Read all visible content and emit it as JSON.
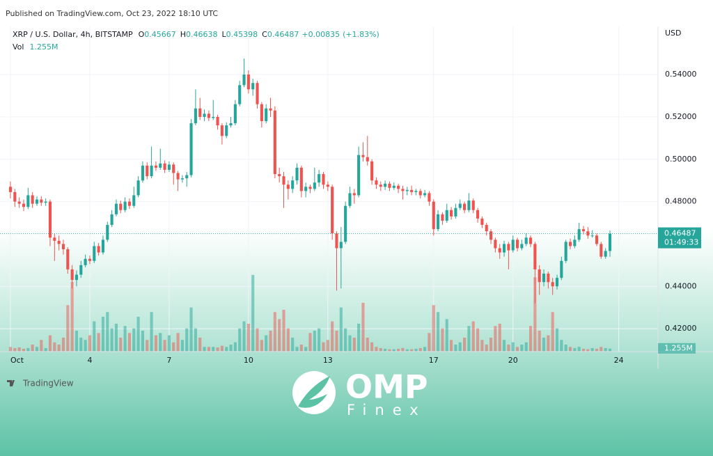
{
  "header": {
    "published": "Published on TradingView.com, Oct 23, 2022 18:10 UTC",
    "brand": "TradingView"
  },
  "watermark": {
    "logo": "OMP",
    "sub": "Finex"
  },
  "chart_data": {
    "type": "candlestick",
    "title": "XRP / U.S. Dollar, 4h, BITSTAMP",
    "ohlc_labels": [
      "O",
      "H",
      "L",
      "C"
    ],
    "change": {
      "value": 0.00835,
      "label": "+0.00835"
    },
    "change_pct": {
      "value": 1.83,
      "label": "(+1.83%)"
    },
    "currency": "USD",
    "countdown": "01:49:33",
    "up_color": "#26a69a",
    "down_color": "#ef5350",
    "candles": [
      [
        0.487,
        0.4895,
        0.4815,
        0.4845
      ],
      [
        0.4845,
        0.486,
        0.4775,
        0.48
      ],
      [
        0.48,
        0.482,
        0.477,
        0.479
      ],
      [
        0.479,
        0.481,
        0.4755,
        0.4775
      ],
      [
        0.4775,
        0.4865,
        0.4765,
        0.483
      ],
      [
        0.483,
        0.4845,
        0.477,
        0.479
      ],
      [
        0.479,
        0.4825,
        0.478,
        0.481
      ],
      [
        0.481,
        0.4825,
        0.478,
        0.4795
      ],
      [
        0.4795,
        0.4815,
        0.478,
        0.48
      ],
      [
        0.48,
        0.481,
        0.459,
        0.463
      ],
      [
        0.463,
        0.465,
        0.452,
        0.4615
      ],
      [
        0.4615,
        0.464,
        0.457,
        0.46
      ],
      [
        0.46,
        0.462,
        0.455,
        0.4575
      ],
      [
        0.4575,
        0.4585,
        0.446,
        0.448
      ],
      [
        0.448,
        0.45,
        0.439,
        0.443
      ],
      [
        0.443,
        0.4475,
        0.44,
        0.4455
      ],
      [
        0.4455,
        0.452,
        0.444,
        0.45
      ],
      [
        0.45,
        0.455,
        0.449,
        0.453
      ],
      [
        0.453,
        0.4545,
        0.4505,
        0.452
      ],
      [
        0.452,
        0.461,
        0.451,
        0.459
      ],
      [
        0.459,
        0.4605,
        0.4545,
        0.456
      ],
      [
        0.456,
        0.464,
        0.455,
        0.462
      ],
      [
        0.462,
        0.4705,
        0.461,
        0.469
      ],
      [
        0.469,
        0.476,
        0.468,
        0.474
      ],
      [
        0.474,
        0.481,
        0.473,
        0.479
      ],
      [
        0.479,
        0.4805,
        0.4745,
        0.476
      ],
      [
        0.476,
        0.482,
        0.475,
        0.48
      ],
      [
        0.48,
        0.4815,
        0.4765,
        0.478
      ],
      [
        0.478,
        0.487,
        0.477,
        0.483
      ],
      [
        0.483,
        0.492,
        0.482,
        0.49
      ],
      [
        0.49,
        0.499,
        0.489,
        0.497
      ],
      [
        0.497,
        0.4985,
        0.4905,
        0.492
      ],
      [
        0.492,
        0.506,
        0.491,
        0.497
      ],
      [
        0.497,
        0.499,
        0.4945,
        0.496
      ],
      [
        0.496,
        0.505,
        0.495,
        0.498
      ],
      [
        0.498,
        0.4995,
        0.4935,
        0.495
      ],
      [
        0.495,
        0.499,
        0.494,
        0.4975
      ],
      [
        0.4975,
        0.4985,
        0.488,
        0.4935
      ],
      [
        0.4935,
        0.4945,
        0.485,
        0.4905
      ],
      [
        0.4905,
        0.4925,
        0.489,
        0.491
      ],
      [
        0.491,
        0.494,
        0.487,
        0.4925
      ],
      [
        0.4925,
        0.519,
        0.4915,
        0.517
      ],
      [
        0.517,
        0.533,
        0.516,
        0.524
      ],
      [
        0.524,
        0.529,
        0.5185,
        0.52
      ],
      [
        0.52,
        0.5235,
        0.518,
        0.5215
      ],
      [
        0.5215,
        0.523,
        0.518,
        0.5195
      ],
      [
        0.5195,
        0.528,
        0.5185,
        0.52
      ],
      [
        0.52,
        0.521,
        0.514,
        0.516
      ],
      [
        0.516,
        0.517,
        0.507,
        0.511
      ],
      [
        0.511,
        0.5175,
        0.51,
        0.516
      ],
      [
        0.516,
        0.52,
        0.515,
        0.517
      ],
      [
        0.517,
        0.528,
        0.516,
        0.526
      ],
      [
        0.526,
        0.537,
        0.525,
        0.535
      ],
      [
        0.535,
        0.5475,
        0.534,
        0.54
      ],
      [
        0.54,
        0.542,
        0.531,
        0.533
      ],
      [
        0.533,
        0.538,
        0.53,
        0.536
      ],
      [
        0.536,
        0.537,
        0.524,
        0.526
      ],
      [
        0.526,
        0.527,
        0.515,
        0.518
      ],
      [
        0.518,
        0.526,
        0.517,
        0.524
      ],
      [
        0.524,
        0.529,
        0.52,
        0.523
      ],
      [
        0.523,
        0.525,
        0.491,
        0.493
      ],
      [
        0.493,
        0.496,
        0.489,
        0.492
      ],
      [
        0.492,
        0.494,
        0.477,
        0.488
      ],
      [
        0.488,
        0.49,
        0.481,
        0.486
      ],
      [
        0.486,
        0.492,
        0.484,
        0.49
      ],
      [
        0.49,
        0.498,
        0.488,
        0.496
      ],
      [
        0.496,
        0.497,
        0.482,
        0.485
      ],
      [
        0.485,
        0.489,
        0.482,
        0.487
      ],
      [
        0.487,
        0.488,
        0.484,
        0.486
      ],
      [
        0.486,
        0.496,
        0.485,
        0.489
      ],
      [
        0.489,
        0.495,
        0.487,
        0.493
      ],
      [
        0.493,
        0.494,
        0.486,
        0.488
      ],
      [
        0.488,
        0.4895,
        0.485,
        0.487
      ],
      [
        0.487,
        0.488,
        0.462,
        0.465
      ],
      [
        0.465,
        0.466,
        0.438,
        0.458
      ],
      [
        0.458,
        0.468,
        0.439,
        0.461
      ],
      [
        0.461,
        0.48,
        0.46,
        0.478
      ],
      [
        0.478,
        0.487,
        0.477,
        0.484
      ],
      [
        0.484,
        0.486,
        0.479,
        0.483
      ],
      [
        0.483,
        0.506,
        0.482,
        0.502
      ],
      [
        0.502,
        0.508,
        0.499,
        0.501
      ],
      [
        0.501,
        0.511,
        0.497,
        0.499
      ],
      [
        0.499,
        0.5,
        0.488,
        0.49
      ],
      [
        0.49,
        0.4915,
        0.486,
        0.488
      ],
      [
        0.488,
        0.4895,
        0.485,
        0.487
      ],
      [
        0.487,
        0.49,
        0.4855,
        0.4885
      ],
      [
        0.4885,
        0.4895,
        0.485,
        0.4865
      ],
      [
        0.4865,
        0.489,
        0.4855,
        0.4875
      ],
      [
        0.4875,
        0.4885,
        0.484,
        0.486
      ],
      [
        0.486,
        0.4875,
        0.481,
        0.485
      ],
      [
        0.485,
        0.487,
        0.483,
        0.4855
      ],
      [
        0.4855,
        0.4875,
        0.483,
        0.4845
      ],
      [
        0.4845,
        0.486,
        0.483,
        0.485
      ],
      [
        0.485,
        0.486,
        0.4815,
        0.483
      ],
      [
        0.483,
        0.4855,
        0.482,
        0.484
      ],
      [
        0.484,
        0.485,
        0.478,
        0.48
      ],
      [
        0.48,
        0.481,
        0.464,
        0.467
      ],
      [
        0.467,
        0.476,
        0.466,
        0.474
      ],
      [
        0.474,
        0.475,
        0.469,
        0.471
      ],
      [
        0.471,
        0.479,
        0.47,
        0.476
      ],
      [
        0.476,
        0.4775,
        0.4715,
        0.473
      ],
      [
        0.473,
        0.479,
        0.472,
        0.477
      ],
      [
        0.477,
        0.481,
        0.476,
        0.479
      ],
      [
        0.479,
        0.48,
        0.4745,
        0.476
      ],
      [
        0.476,
        0.484,
        0.475,
        0.4805
      ],
      [
        0.4805,
        0.4815,
        0.4745,
        0.476
      ],
      [
        0.476,
        0.477,
        0.47,
        0.472
      ],
      [
        0.472,
        0.473,
        0.4675,
        0.469
      ],
      [
        0.469,
        0.47,
        0.464,
        0.466
      ],
      [
        0.466,
        0.467,
        0.46,
        0.462
      ],
      [
        0.462,
        0.463,
        0.456,
        0.458
      ],
      [
        0.458,
        0.46,
        0.453,
        0.456
      ],
      [
        0.456,
        0.4615,
        0.454,
        0.46
      ],
      [
        0.46,
        0.461,
        0.448,
        0.457
      ],
      [
        0.457,
        0.464,
        0.456,
        0.462
      ],
      [
        0.462,
        0.463,
        0.4565,
        0.458
      ],
      [
        0.458,
        0.462,
        0.457,
        0.46
      ],
      [
        0.46,
        0.465,
        0.459,
        0.463
      ],
      [
        0.463,
        0.464,
        0.4585,
        0.46
      ],
      [
        0.46,
        0.461,
        0.432,
        0.448
      ],
      [
        0.448,
        0.45,
        0.436,
        0.442
      ],
      [
        0.442,
        0.448,
        0.44,
        0.446
      ],
      [
        0.446,
        0.447,
        0.439,
        0.442
      ],
      [
        0.442,
        0.444,
        0.436,
        0.44
      ],
      [
        0.44,
        0.4455,
        0.4385,
        0.444
      ],
      [
        0.444,
        0.454,
        0.443,
        0.452
      ],
      [
        0.452,
        0.462,
        0.451,
        0.461
      ],
      [
        0.461,
        0.4625,
        0.4575,
        0.459
      ],
      [
        0.459,
        0.464,
        0.458,
        0.462
      ],
      [
        0.462,
        0.47,
        0.461,
        0.467
      ],
      [
        0.467,
        0.4685,
        0.4645,
        0.466
      ],
      [
        0.466,
        0.468,
        0.4625,
        0.464
      ],
      [
        0.464,
        0.4665,
        0.463,
        0.464
      ],
      [
        0.464,
        0.465,
        0.459,
        0.46
      ],
      [
        0.46,
        0.461,
        0.453,
        0.454
      ],
      [
        0.454,
        0.458,
        0.453,
        0.4567
      ],
      [
        0.45667,
        0.46638,
        0.45398,
        0.46487
      ]
    ],
    "volume": {
      "name": "Vol",
      "last_label": "1.255M",
      "values": [
        2,
        1.5,
        1.8,
        1.2,
        1.5,
        3,
        2,
        5,
        1.5,
        7,
        4,
        3,
        6,
        20,
        30,
        9,
        6,
        5,
        7,
        13,
        8,
        15,
        17,
        10,
        12,
        6,
        11,
        8,
        10,
        15,
        9,
        5,
        17,
        7,
        8,
        5,
        7,
        4,
        8,
        5,
        10,
        19,
        10,
        6,
        2,
        2,
        2,
        1.8,
        2.5,
        2,
        3,
        4,
        10,
        13,
        12,
        33,
        10,
        5,
        7,
        9,
        17,
        14,
        18,
        10,
        6,
        2,
        3,
        2,
        8,
        9,
        10,
        4,
        5,
        13,
        9,
        19,
        10,
        7,
        6,
        12,
        21,
        6,
        4,
        2,
        1.5,
        1.2,
        1,
        1,
        1.2,
        1.5,
        1,
        1,
        1.2,
        1.5,
        2,
        8,
        20,
        17,
        10,
        14,
        5,
        3,
        4,
        6,
        11,
        13,
        10,
        5,
        3,
        6,
        11,
        12,
        5,
        3,
        4,
        2,
        3,
        4,
        11,
        32,
        9,
        6,
        7,
        17,
        10,
        5,
        3,
        2,
        1.5,
        2,
        1.2,
        1,
        1.5,
        1.2,
        2,
        1.5,
        1.255
      ]
    },
    "xlim": [
      -2.37,
      146.9
    ],
    "xticks": [
      {
        "value": 0,
        "label": "Oct"
      },
      {
        "value": 18,
        "label": "4"
      },
      {
        "value": 36,
        "label": "7"
      },
      {
        "value": 54,
        "label": "10"
      },
      {
        "value": 72,
        "label": "13"
      },
      {
        "value": 96,
        "label": "17"
      },
      {
        "value": 114,
        "label": "20"
      },
      {
        "value": 138,
        "label": "24"
      }
    ],
    "ylim": [
      0.4092,
      0.5627
    ],
    "yticks": [
      {
        "value": 0.54,
        "label": "0.54000"
      },
      {
        "value": 0.52,
        "label": "0.52000"
      },
      {
        "value": 0.5,
        "label": "0.50000"
      },
      {
        "value": 0.48,
        "label": "0.48000"
      },
      {
        "value": 0.44,
        "label": "0.44000"
      },
      {
        "value": 0.42,
        "label": "0.42000"
      }
    ],
    "vlim": [
      0,
      140
    ],
    "grid": true
  }
}
